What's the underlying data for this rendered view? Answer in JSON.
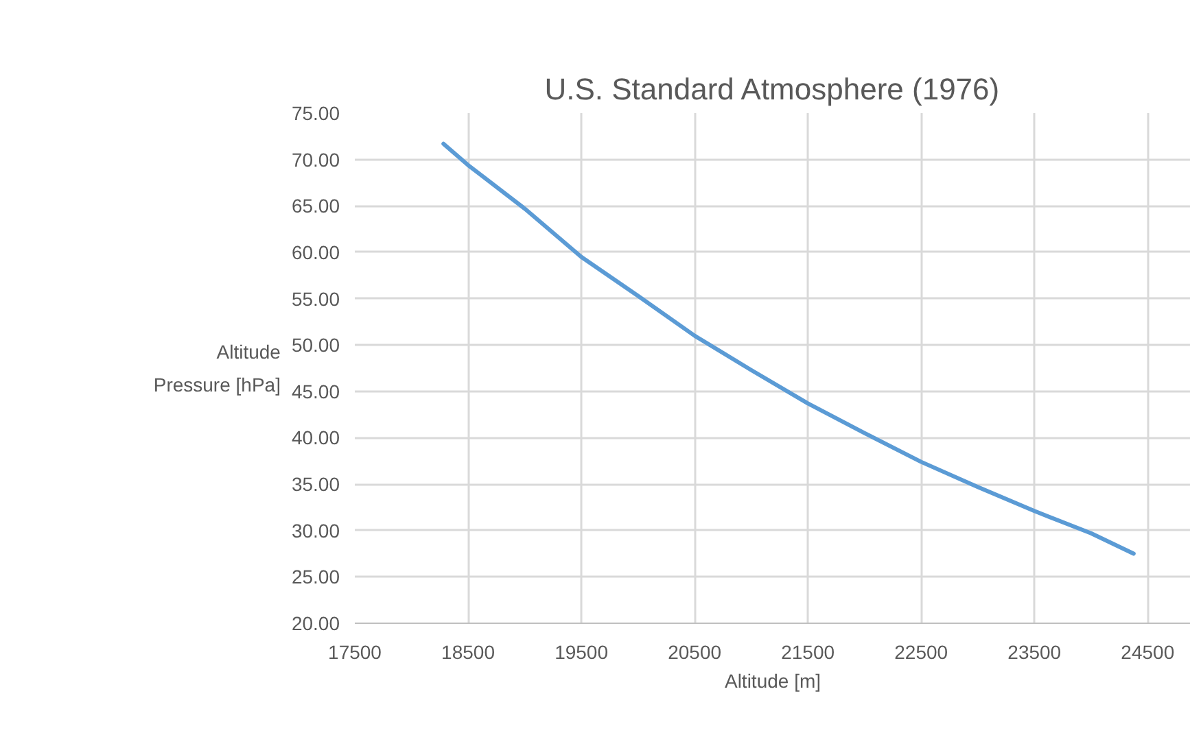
{
  "chart_data": {
    "type": "line",
    "title": "U.S. Standard Atmosphere (1976)",
    "xlabel": "Altitude [m]",
    "ylabel": "Altitude Pressure [hPa]",
    "x": [
      18283,
      18500,
      19000,
      19500,
      20000,
      20500,
      21000,
      21500,
      22000,
      22500,
      23000,
      23500,
      24000,
      24376
    ],
    "series": [
      {
        "color": "#5b9bd5",
        "values": [
          71.7,
          69.4,
          64.7,
          59.5,
          55.3,
          51.0,
          47.3,
          43.7,
          40.5,
          37.4,
          34.7,
          32.1,
          29.7,
          27.5
        ]
      }
    ],
    "xlim": [
      17500,
      24880
    ],
    "xticks": [
      17500,
      18500,
      19500,
      20500,
      21500,
      22500,
      23500,
      24500
    ],
    "ylim": [
      20,
      75
    ],
    "yticks": [
      {
        "value": 20,
        "label": "20.00"
      },
      {
        "value": 25,
        "label": "25.00"
      },
      {
        "value": 30,
        "label": "30.00"
      },
      {
        "value": 35,
        "label": "35.00"
      },
      {
        "value": 40,
        "label": "40.00"
      },
      {
        "value": 45,
        "label": "45.00"
      },
      {
        "value": 50,
        "label": "50.00"
      },
      {
        "value": 55,
        "label": "55.00"
      },
      {
        "value": 60,
        "label": "60.00"
      },
      {
        "value": 65,
        "label": "65.00"
      },
      {
        "value": 70,
        "label": "70.00"
      },
      {
        "value": 75,
        "label": "75.00"
      }
    ],
    "grid": true,
    "marker": "none",
    "line_style": "solid"
  }
}
